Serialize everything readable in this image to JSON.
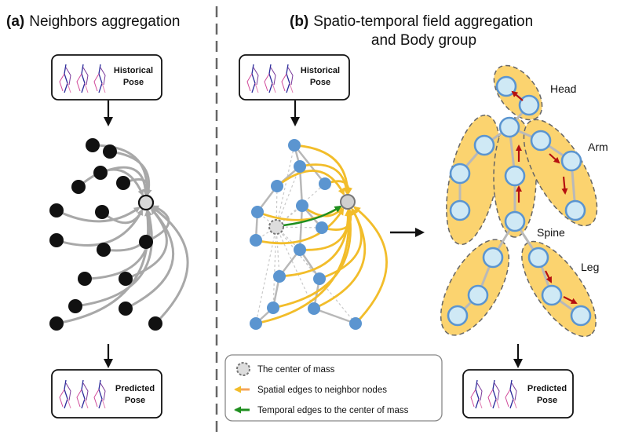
{
  "panel_a": {
    "tag": "(a)",
    "title": "Neighbors aggregation",
    "top_box": {
      "line1": "Historical",
      "line2": "Pose"
    },
    "bottom_box": {
      "line1": "Predicted",
      "line2": "Pose"
    }
  },
  "panel_b": {
    "tag": "(b)",
    "title_line1": "Spatio-temporal field aggregation",
    "title_line2": "and Body group",
    "top_box": {
      "line1": "Historical",
      "line2": "Pose"
    },
    "bottom_box": {
      "line1": "Predicted",
      "line2": "Pose"
    },
    "groups": {
      "head": "Head",
      "arm": "Arm",
      "spine": "Spine",
      "leg": "Leg"
    }
  },
  "legend": {
    "center_of_mass": "The center of mass",
    "spatial_edges": "Spatial edges to neighbor nodes",
    "temporal_edges": "Temporal edges to the center of mass"
  },
  "colors": {
    "black_node": "#111111",
    "blue_node": "#5b95d0",
    "light_node_fill": "#cfe9f5",
    "group_fill": "#fbd36f",
    "spatial_edge": "#f2bd2a",
    "temporal_edge": "#1f8f1f",
    "red_arrow": "#b51010",
    "gray_edge": "#a8a8a8"
  }
}
